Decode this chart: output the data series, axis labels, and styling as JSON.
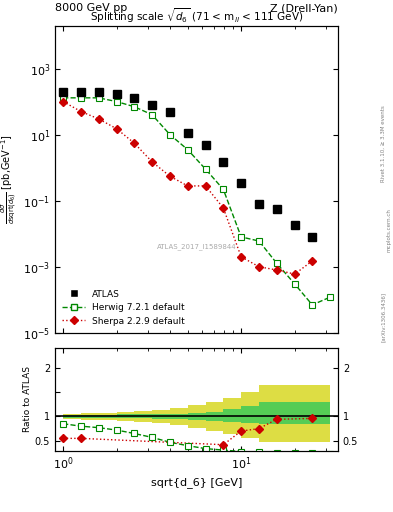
{
  "title_left": "8000 GeV pp",
  "title_right": "Z (Drell-Yan)",
  "plot_title": "Splitting scale $\\sqrt{d_6}$ (71 < m$_{ll}$ < 111 GeV)",
  "ylabel_main": "d$\\sigma$\n/dsqrt[$d_6$] [pb,GeV$^{-1}$]",
  "ylabel_ratio": "Ratio to ATLAS",
  "xlabel": "sqrt{d_6} [GeV]",
  "rivet_label": "Rivet 3.1.10, ≥ 3.3M events",
  "arxiv_label": "[arXiv:1306.3436]",
  "mcplots_label": "mcplots.cern.ch",
  "atlas_id": "ATLAS_2017_I1589844",
  "atlas_x": [
    1.0,
    1.26,
    1.58,
    2.0,
    2.51,
    3.16,
    3.98,
    5.01,
    6.31,
    7.94,
    10.0,
    12.6,
    15.8,
    20.0,
    25.1
  ],
  "atlas_y": [
    200,
    200,
    200,
    170,
    130,
    80,
    50,
    11,
    5.0,
    1.5,
    0.35,
    0.08,
    0.055,
    0.018,
    0.008
  ],
  "herwig_x": [
    1.0,
    1.26,
    1.58,
    2.0,
    2.51,
    3.16,
    3.98,
    5.01,
    6.31,
    7.94,
    10.0,
    12.6,
    15.8,
    20.0,
    25.1,
    31.6
  ],
  "herwig_y": [
    130,
    130,
    130,
    100,
    70,
    40,
    10,
    3.5,
    0.9,
    0.22,
    0.008,
    0.006,
    0.0013,
    0.0003,
    7e-05,
    0.00012
  ],
  "sherpa_x": [
    1.0,
    1.26,
    1.58,
    2.0,
    2.51,
    3.16,
    3.98,
    5.01,
    6.31,
    7.94,
    10.0,
    12.6,
    15.8,
    20.0,
    25.1
  ],
  "sherpa_y": [
    100,
    50,
    30,
    15,
    5.5,
    1.5,
    0.55,
    0.28,
    0.28,
    0.06,
    0.002,
    0.001,
    0.0008,
    0.0006,
    0.0015
  ],
  "herwig_ratio_x": [
    1.0,
    1.26,
    1.58,
    2.0,
    2.51,
    3.16,
    3.98,
    5.01,
    6.31,
    7.94,
    10.0,
    12.6,
    15.8,
    20.0,
    25.1,
    31.6
  ],
  "herwig_ratio_y": [
    0.85,
    0.8,
    0.77,
    0.72,
    0.65,
    0.57,
    0.47,
    0.4,
    0.34,
    0.31,
    0.28,
    0.27,
    0.26,
    0.25,
    0.24,
    0.23
  ],
  "sherpa_ratio_x": [
    1.0,
    1.26,
    7.94,
    10.0,
    12.6,
    15.8,
    25.1
  ],
  "sherpa_ratio_y": [
    0.55,
    0.55,
    0.42,
    0.7,
    0.75,
    0.94,
    0.96
  ],
  "band_x_edges": [
    1.0,
    1.26,
    1.58,
    2.0,
    2.51,
    3.16,
    3.98,
    5.01,
    6.31,
    7.94,
    10.0,
    12.6,
    31.6
  ],
  "green_band_low": [
    0.97,
    0.97,
    0.97,
    0.96,
    0.96,
    0.95,
    0.94,
    0.93,
    0.91,
    0.89,
    0.87,
    0.85,
    0.85
  ],
  "green_band_high": [
    1.03,
    1.03,
    1.03,
    1.04,
    1.04,
    1.05,
    1.06,
    1.07,
    1.1,
    1.15,
    1.22,
    1.3,
    1.3
  ],
  "yellow_band_low": [
    0.94,
    0.93,
    0.92,
    0.91,
    0.89,
    0.86,
    0.82,
    0.77,
    0.7,
    0.63,
    0.55,
    0.48,
    0.48
  ],
  "yellow_band_high": [
    1.06,
    1.07,
    1.08,
    1.09,
    1.11,
    1.14,
    1.18,
    1.23,
    1.3,
    1.37,
    1.5,
    1.65,
    1.65
  ],
  "xlim": [
    0.9,
    35.0
  ],
  "ylim_main": [
    1e-05,
    20000.0
  ],
  "ylim_ratio": [
    0.3,
    2.4
  ],
  "atlas_color": "#000000",
  "herwig_color": "#008800",
  "sherpa_color": "#cc0000",
  "green_band_color": "#55cc55",
  "yellow_band_color": "#dddd44"
}
